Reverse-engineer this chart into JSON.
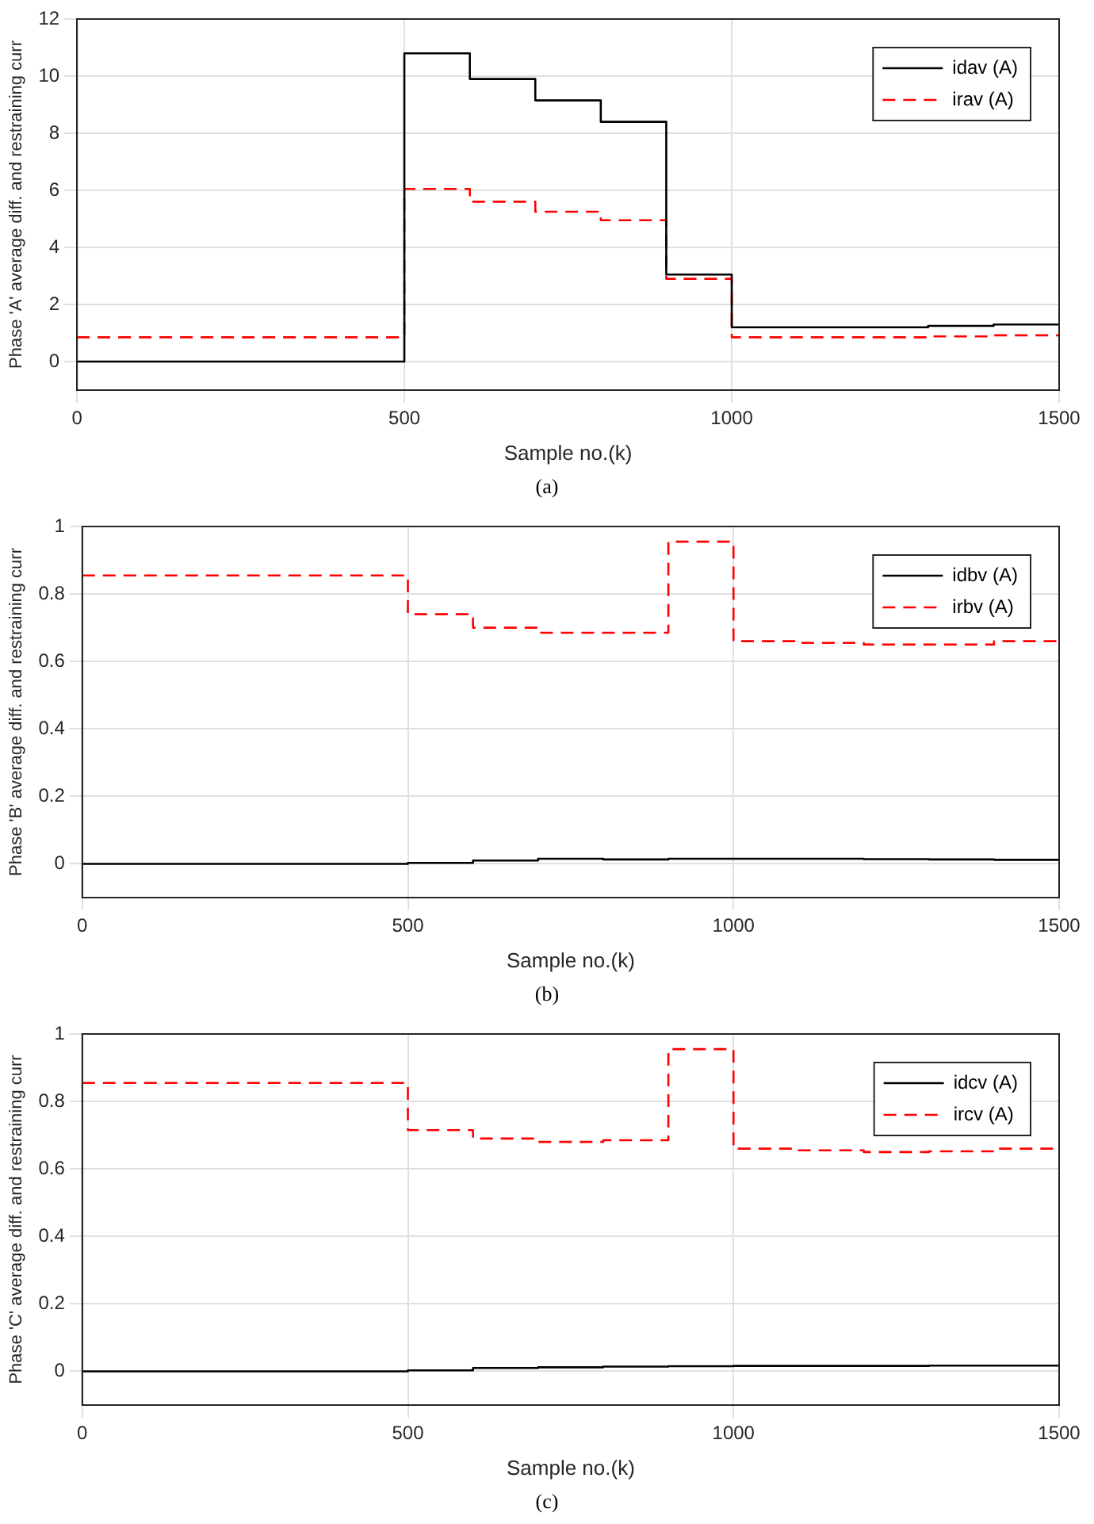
{
  "chart_data": [
    {
      "type": "step",
      "xlabel": "Sample no.(k)",
      "ylabel": "Phase 'A' average diff. and restraining curr",
      "annotations": [
        "(a)"
      ],
      "x": [
        0,
        500,
        600,
        700,
        800,
        900,
        1000,
        1100,
        1200,
        1300,
        1400,
        1500
      ],
      "xlim": [
        0,
        1500
      ],
      "xticks": [
        0,
        500,
        1000,
        1500
      ],
      "ylim": [
        -1,
        12
      ],
      "yticks": [
        0,
        2,
        4,
        6,
        8,
        10,
        12
      ],
      "grid": true,
      "legend": "top right",
      "series": [
        {
          "name": "idav (A)",
          "color": "#000000",
          "line_style": "solid",
          "values": [
            0,
            10.8,
            9.9,
            9.15,
            8.4,
            3.05,
            1.2,
            1.2,
            1.2,
            1.25,
            1.3,
            1.3
          ]
        },
        {
          "name": "irav (A)",
          "color": "#ff0000",
          "line_style": "dashed",
          "values": [
            0.85,
            6.05,
            5.6,
            5.25,
            4.95,
            2.9,
            0.85,
            0.85,
            0.85,
            0.88,
            0.92,
            0.92
          ]
        }
      ]
    },
    {
      "type": "step",
      "xlabel": "Sample no.(k)",
      "ylabel": "Phase 'B' average diff. and restraining curr",
      "annotations": [
        "(b)"
      ],
      "x": [
        0,
        500,
        600,
        700,
        800,
        900,
        1000,
        1100,
        1200,
        1300,
        1400,
        1500
      ],
      "xlim": [
        0,
        1500
      ],
      "xticks": [
        0,
        500,
        1000,
        1500
      ],
      "ylim": [
        -0.1,
        1
      ],
      "yticks": [
        0,
        0.2,
        0.4,
        0.6,
        0.8,
        1
      ],
      "grid": true,
      "legend": "top right",
      "series": [
        {
          "name": "idbv (A)",
          "color": "#000000",
          "line_style": "solid",
          "values": [
            0,
            0.003,
            0.01,
            0.015,
            0.013,
            0.015,
            0.015,
            0.015,
            0.014,
            0.013,
            0.012,
            0.012
          ]
        },
        {
          "name": "irbv (A)",
          "color": "#ff0000",
          "line_style": "dashed",
          "values": [
            0.855,
            0.74,
            0.7,
            0.685,
            0.685,
            0.955,
            0.66,
            0.655,
            0.65,
            0.65,
            0.66,
            0.66
          ]
        }
      ]
    },
    {
      "type": "step",
      "xlabel": "Sample no.(k)",
      "ylabel": "Phase 'C' average diff. and restraining curr",
      "annotations": [
        "(c)"
      ],
      "x": [
        0,
        500,
        600,
        700,
        800,
        900,
        1000,
        1100,
        1200,
        1300,
        1400,
        1500
      ],
      "xlim": [
        0,
        1500
      ],
      "xticks": [
        0,
        500,
        1000,
        1500
      ],
      "ylim": [
        -0.1,
        1
      ],
      "yticks": [
        0,
        0.2,
        0.4,
        0.6,
        0.8,
        1
      ],
      "grid": true,
      "legend": "top right",
      "series": [
        {
          "name": "idcv (A)",
          "color": "#000000",
          "line_style": "solid",
          "values": [
            0,
            0.003,
            0.01,
            0.012,
            0.014,
            0.015,
            0.016,
            0.016,
            0.016,
            0.017,
            0.017,
            0.017
          ]
        },
        {
          "name": "ircv (A)",
          "color": "#ff0000",
          "line_style": "dashed",
          "values": [
            0.855,
            0.715,
            0.69,
            0.68,
            0.685,
            0.955,
            0.66,
            0.655,
            0.65,
            0.652,
            0.66,
            0.66
          ]
        }
      ]
    }
  ]
}
